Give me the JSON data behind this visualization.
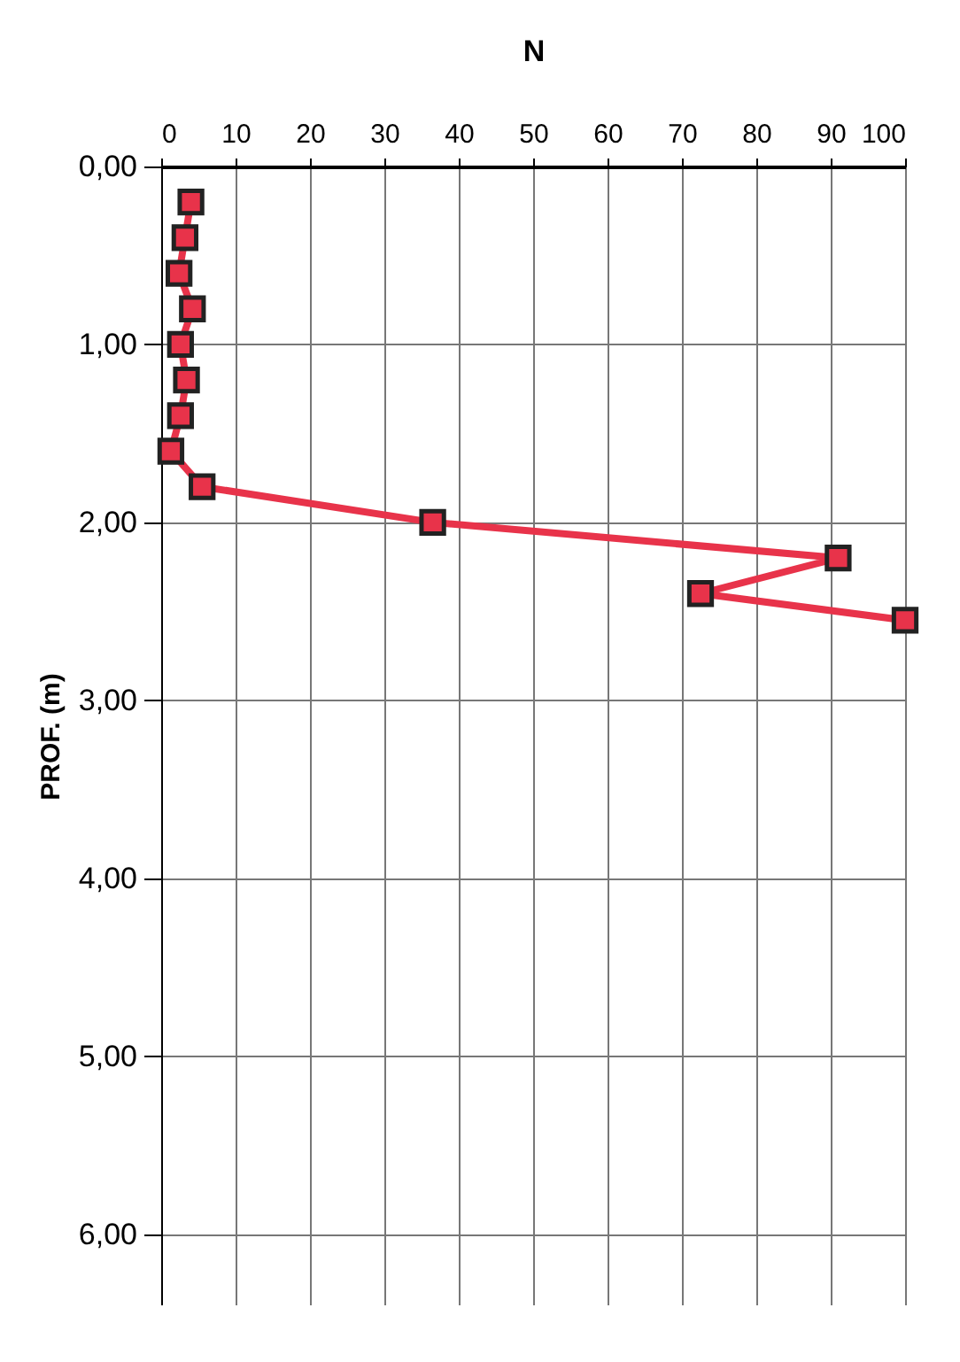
{
  "chart_data": {
    "type": "line",
    "xlabel": "N",
    "ylabel": "PROF. (m)",
    "x": [
      4.0,
      3.2,
      2.4,
      4.2,
      2.6,
      3.4,
      2.6,
      1.3,
      5.5,
      36.5,
      91,
      72.5,
      100
    ],
    "series": [
      {
        "color": "#e8334a",
        "values": [
          0.2,
          0.4,
          0.6,
          0.8,
          1.0,
          1.2,
          1.4,
          1.6,
          1.8,
          2.0,
          2.2,
          2.4,
          2.55
        ]
      }
    ],
    "xlim": [
      0,
      100
    ],
    "xticks": [
      0,
      10,
      20,
      30,
      40,
      50,
      60,
      70,
      80,
      90,
      100
    ],
    "ylim": [
      6.4,
      0
    ],
    "yticks": [
      {
        "value": 0,
        "label": "0,00"
      },
      {
        "value": 1,
        "label": "1,00"
      },
      {
        "value": 2,
        "label": "2,00"
      },
      {
        "value": 3,
        "label": "3,00"
      },
      {
        "value": 4,
        "label": "4,00"
      },
      {
        "value": 5,
        "label": "5,00"
      },
      {
        "value": 6,
        "label": "6,00"
      }
    ],
    "grid": true,
    "marker": "square",
    "line_style": "solid"
  }
}
